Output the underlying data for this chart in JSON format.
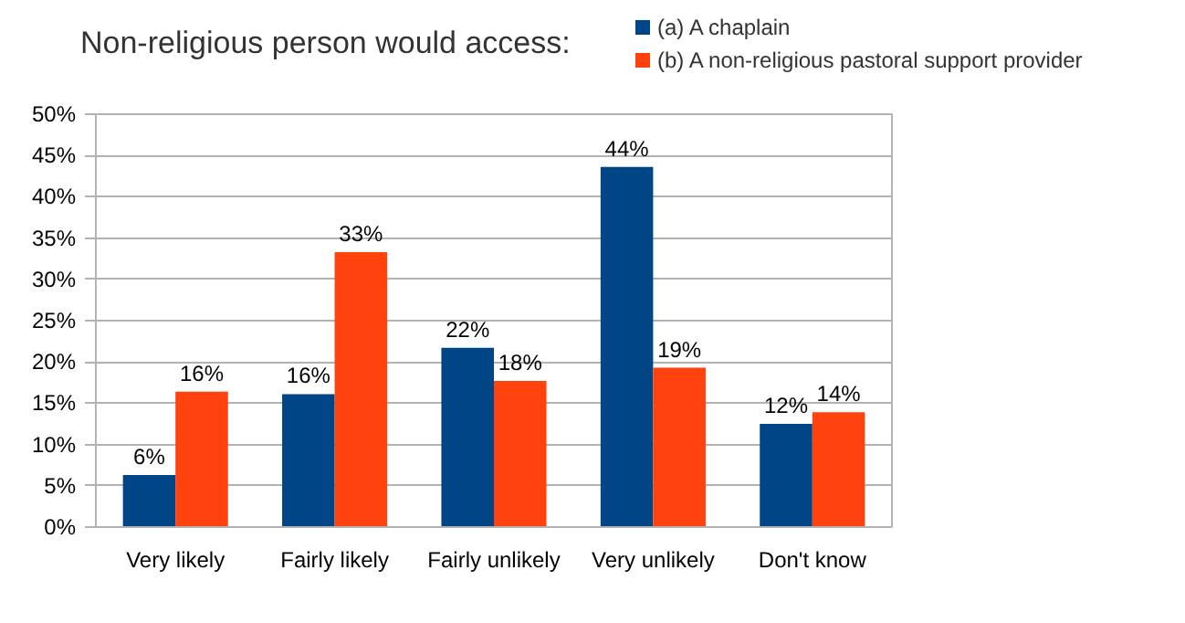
{
  "chart_data": {
    "type": "bar",
    "title": "Non-religious person would access:",
    "categories": [
      "Very likely",
      "Fairly likely",
      "Fairly unlikely",
      "Very unlikely",
      "Don't know"
    ],
    "series": [
      {
        "name": "(a) A chaplain",
        "color": "#004586",
        "values": [
          6.3,
          16.1,
          21.7,
          43.6,
          12.5
        ],
        "value_labels": [
          "6%",
          "16%",
          "22%",
          "44%",
          "12%"
        ]
      },
      {
        "name": "(b) A non-religious pastoral support provider",
        "color": "#ff420e",
        "values": [
          16.4,
          33.3,
          17.7,
          19.3,
          13.9
        ],
        "value_labels": [
          "16%",
          "33%",
          "18%",
          "19%",
          "14%"
        ]
      }
    ],
    "ylim": [
      0,
      50
    ],
    "yticks": [
      {
        "value": 0,
        "label": "0%"
      },
      {
        "value": 5,
        "label": "5%"
      },
      {
        "value": 10,
        "label": "10%"
      },
      {
        "value": 15,
        "label": "15%"
      },
      {
        "value": 20,
        "label": "20%"
      },
      {
        "value": 25,
        "label": "25%"
      },
      {
        "value": 30,
        "label": "30%"
      },
      {
        "value": 35,
        "label": "35%"
      },
      {
        "value": 40,
        "label": "40%"
      },
      {
        "value": 45,
        "label": "45%"
      },
      {
        "value": 50,
        "label": "50%"
      }
    ],
    "grid": "y",
    "legend": "top right"
  }
}
